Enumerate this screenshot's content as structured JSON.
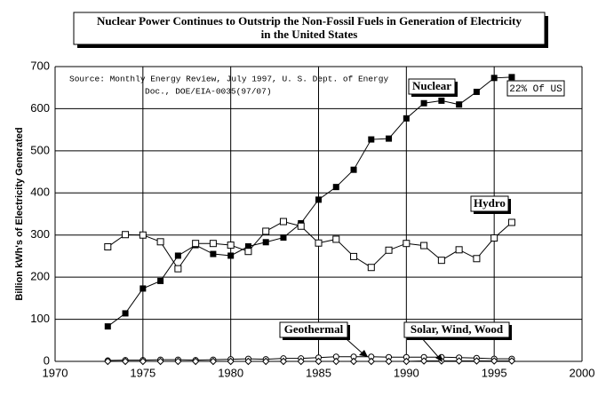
{
  "chart_data": {
    "type": "line",
    "title": [
      "Nuclear Power Continues to Outstrip the Non-Fossil Fuels in Generation of Electricity",
      "in the United States"
    ],
    "y_label": "Billion kWh's of Electricity Generated",
    "source": [
      "Source: Monthly Energy Review, July 1997, U. S. Dept. of Energy",
      "Doc., DOE/EIA-0035(97/07)"
    ],
    "annotation": "22% Of US",
    "x": [
      1973,
      1974,
      1975,
      1976,
      1977,
      1978,
      1979,
      1980,
      1981,
      1982,
      1983,
      1984,
      1985,
      1986,
      1987,
      1988,
      1989,
      1990,
      1991,
      1992,
      1993,
      1994,
      1995,
      1996
    ],
    "series": [
      {
        "name": "Nuclear",
        "color": "#000000",
        "marker": "filled-square",
        "values": [
          83,
          114,
          173,
          191,
          251,
          276,
          255,
          251,
          273,
          283,
          294,
          328,
          384,
          414,
          455,
          527,
          529,
          577,
          613,
          619,
          610,
          640,
          673,
          675
        ]
      },
      {
        "name": "Hydro",
        "color": "#000000",
        "marker": "open-square",
        "values": [
          272,
          301,
          300,
          284,
          220,
          280,
          280,
          276,
          261,
          309,
          332,
          321,
          281,
          290,
          249,
          223,
          264,
          280,
          275,
          240,
          265,
          244,
          293,
          330
        ]
      },
      {
        "name": "Geothermal",
        "color": "#000000",
        "marker": "open-circle",
        "values": [
          2,
          3,
          3,
          4,
          4,
          3,
          4,
          5,
          6,
          5,
          7,
          7,
          9,
          11,
          11,
          11,
          10,
          10,
          10,
          10,
          9,
          8,
          6,
          6
        ]
      },
      {
        "name": "Solar, Wind, Wood",
        "color": "#000000",
        "marker": "open-diamond",
        "values": [
          0,
          0,
          0,
          0,
          0,
          0,
          0,
          0,
          0,
          0,
          0,
          0,
          0,
          0,
          0,
          0,
          0,
          0,
          1,
          1,
          1,
          1,
          1,
          1
        ]
      }
    ],
    "xlim": [
      1970,
      2000
    ],
    "xticks": [
      1970,
      1975,
      1980,
      1985,
      1990,
      1995,
      2000
    ],
    "ylim": [
      0,
      700
    ],
    "yticks": [
      0,
      100,
      200,
      300,
      400,
      500,
      600,
      700
    ],
    "grid": true
  }
}
